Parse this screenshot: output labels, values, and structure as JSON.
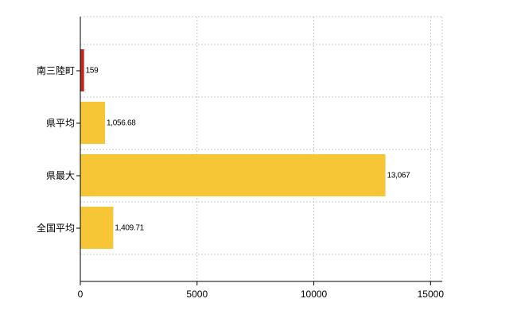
{
  "chart_data": {
    "type": "bar",
    "orientation": "horizontal",
    "categories": [
      "南三陸町",
      "県平均",
      "県最大",
      "全国平均"
    ],
    "values": [
      159,
      1056.68,
      13067,
      1409.71
    ],
    "data_labels": [
      "159",
      "1,056.68",
      "13,067",
      "1,409.71"
    ],
    "bar_colors": [
      "#c0271e",
      "#f7c637",
      "#f7c637",
      "#f7c637"
    ],
    "xlim": [
      0,
      15500
    ],
    "x_ticks": [
      0,
      5000,
      10000,
      15000
    ],
    "x_tick_labels": [
      "0",
      "5000",
      "10000",
      "15000"
    ],
    "grid": "vertical dashed",
    "title": "",
    "xlabel": "",
    "ylabel": ""
  }
}
